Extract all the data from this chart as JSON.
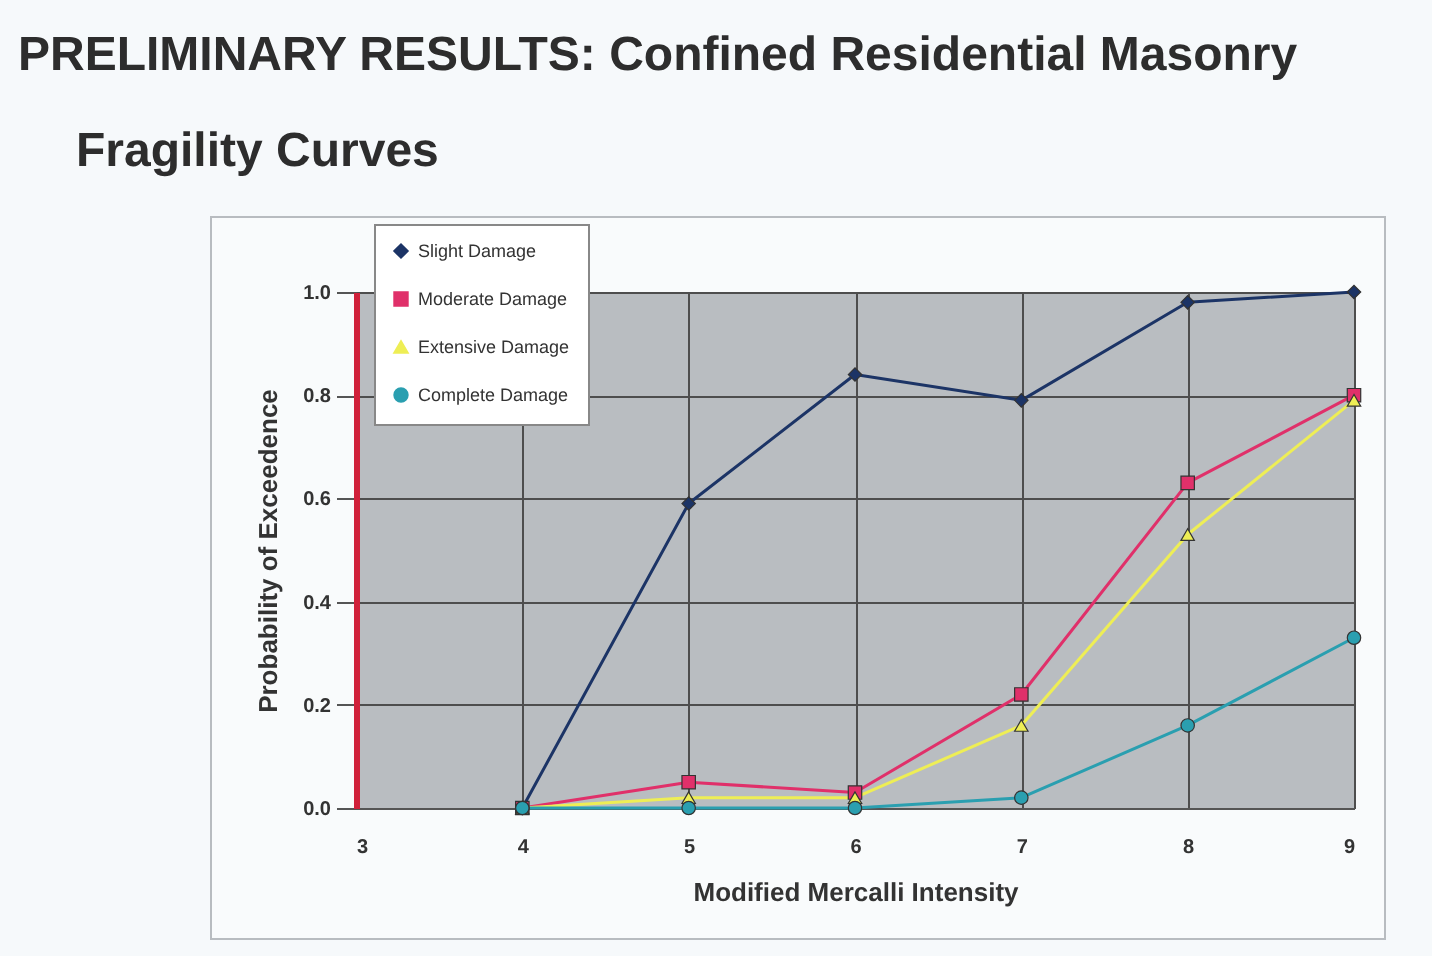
{
  "chart_data": {
    "type": "line",
    "title": "PRELIMINARY RESULTS: Confined Residential Masonry",
    "subtitle": "Fragility Curves",
    "xlabel": "Modified Mercalli Intensity",
    "ylabel": "Probability of Exceedence",
    "x": [
      4,
      5,
      6,
      7,
      8,
      9
    ],
    "series": [
      {
        "name": "Slight Damage",
        "color": "#1c3466",
        "marker": "diamond",
        "values": [
          0,
          0.59,
          0.84,
          0.79,
          0.98,
          1.0
        ]
      },
      {
        "name": "Moderate Damage",
        "color": "#e0306a",
        "marker": "square",
        "values": [
          0,
          0.05,
          0.03,
          0.22,
          0.63,
          0.8
        ]
      },
      {
        "name": "Extensive Damage",
        "color": "#eeee55",
        "marker": "triangle",
        "values": [
          0,
          0.02,
          0.02,
          0.16,
          0.53,
          0.79
        ]
      },
      {
        "name": "Complete Damage",
        "color": "#2a9fb0",
        "marker": "circle",
        "values": [
          0,
          0,
          0,
          0.02,
          0.16,
          0.33
        ]
      }
    ],
    "xlim": [
      3,
      9
    ],
    "xticks": [
      3,
      4,
      5,
      6,
      7,
      8,
      9
    ],
    "ylim": [
      0,
      1
    ],
    "yticks": [
      {
        "value": 0,
        "label": "0.0"
      },
      0.2,
      0.4,
      0.6,
      0.8,
      {
        "value": 1,
        "label": "1.0"
      }
    ],
    "grid": true,
    "legend": "top left",
    "line_style": "solid"
  }
}
